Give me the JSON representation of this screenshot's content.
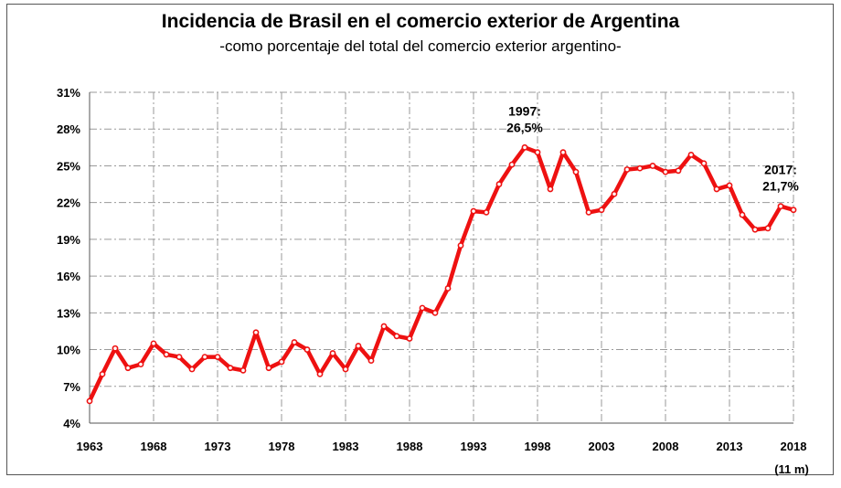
{
  "chart_data": {
    "type": "line",
    "title": "Incidencia de Brasil en el comercio exterior de Argentina",
    "subtitle": "-como porcentaje del total del comercio exterior argentino-",
    "xlabel": "",
    "ylabel": "",
    "xlim": [
      1963,
      2018
    ],
    "ylim": [
      4,
      31
    ],
    "y_ticks": [
      4,
      7,
      10,
      13,
      16,
      19,
      22,
      25,
      28,
      31
    ],
    "y_tick_labels": [
      "4%",
      "7%",
      "10%",
      "13%",
      "16%",
      "19%",
      "22%",
      "25%",
      "28%",
      "31%"
    ],
    "x_ticks": [
      1963,
      1968,
      1973,
      1978,
      1983,
      1988,
      1993,
      1998,
      2003,
      2008,
      2013,
      2018
    ],
    "x_tick_labels": [
      "1963",
      "1968",
      "1973",
      "1978",
      "1983",
      "1988",
      "1993",
      "1998",
      "2003",
      "2008",
      "2013",
      "2018"
    ],
    "x_tick_note": "(11 m)",
    "grid": true,
    "series": [
      {
        "name": "Brasil",
        "color": "#ee1111",
        "x": [
          1963,
          1964,
          1965,
          1966,
          1967,
          1968,
          1969,
          1970,
          1971,
          1972,
          1973,
          1974,
          1975,
          1976,
          1977,
          1978,
          1979,
          1980,
          1981,
          1982,
          1983,
          1984,
          1985,
          1986,
          1987,
          1988,
          1989,
          1990,
          1991,
          1992,
          1993,
          1994,
          1995,
          1996,
          1997,
          1998,
          1999,
          2000,
          2001,
          2002,
          2003,
          2004,
          2005,
          2006,
          2007,
          2008,
          2009,
          2010,
          2011,
          2012,
          2013,
          2014,
          2015,
          2016,
          2017,
          2018
        ],
        "values": [
          5.8,
          8.0,
          10.1,
          8.5,
          8.8,
          10.5,
          9.6,
          9.4,
          8.4,
          9.4,
          9.4,
          8.5,
          8.3,
          11.4,
          8.5,
          9.0,
          10.6,
          10.0,
          8.0,
          9.7,
          8.4,
          10.3,
          9.1,
          11.9,
          11.1,
          10.9,
          13.4,
          13.0,
          15.0,
          18.5,
          21.3,
          21.2,
          23.5,
          25.1,
          26.5,
          26.1,
          23.1,
          26.1,
          24.5,
          21.2,
          21.4,
          22.7,
          24.7,
          24.8,
          25.0,
          24.5,
          24.6,
          25.9,
          25.2,
          23.1,
          23.4,
          21.0,
          19.8,
          19.9,
          21.7,
          21.4
        ]
      }
    ],
    "annotations": [
      {
        "year": "1997:",
        "value": "26,5%",
        "x": 1997,
        "y": 26.5
      },
      {
        "year": "2017:",
        "value": "21,7%",
        "x": 2017,
        "y": 21.7
      }
    ]
  }
}
